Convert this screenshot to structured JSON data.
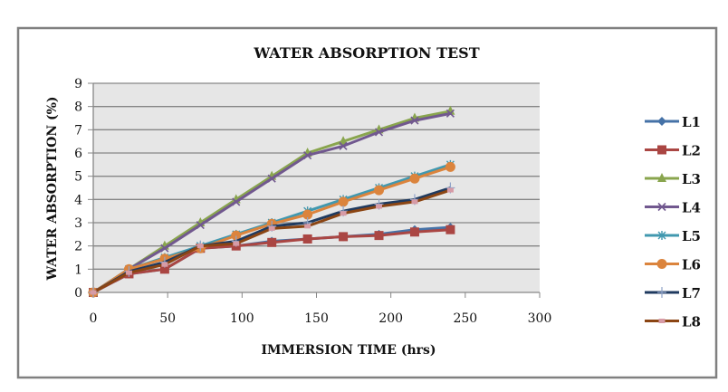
{
  "chart_data": {
    "type": "line",
    "title": "WATER ABSORPTION TEST",
    "xlabel": "IMMERSION TIME (hrs)",
    "ylabel": "WATER ABSORPTION (%)",
    "xlim": [
      0,
      300
    ],
    "ylim": [
      0,
      9
    ],
    "xticks": [
      0,
      50,
      100,
      150,
      200,
      250,
      300
    ],
    "yticks": [
      0,
      1,
      2,
      3,
      4,
      5,
      6,
      7,
      8,
      9
    ],
    "grid": true,
    "legend_position": "right",
    "x": [
      0,
      24,
      48,
      72,
      96,
      120,
      144,
      168,
      192,
      216,
      240
    ],
    "series": [
      {
        "name": "L1",
        "color": "#4572A7",
        "marker": "diamond",
        "values": [
          0,
          0.8,
          1.0,
          1.9,
          2.0,
          2.2,
          2.3,
          2.4,
          2.5,
          2.7,
          2.8
        ]
      },
      {
        "name": "L2",
        "color": "#AA4643",
        "marker": "square",
        "values": [
          0,
          0.8,
          1.0,
          1.9,
          2.0,
          2.15,
          2.3,
          2.4,
          2.45,
          2.6,
          2.7
        ]
      },
      {
        "name": "L3",
        "color": "#89A54E",
        "marker": "triangle",
        "values": [
          0,
          1.0,
          2.0,
          3.0,
          4.0,
          5.0,
          6.0,
          6.5,
          7.0,
          7.5,
          7.8
        ]
      },
      {
        "name": "L4",
        "color": "#71588F",
        "marker": "x",
        "values": [
          0,
          1.0,
          1.9,
          2.9,
          3.9,
          4.9,
          5.9,
          6.3,
          6.9,
          7.4,
          7.7
        ]
      },
      {
        "name": "L5",
        "color": "#4198AF",
        "marker": "star",
        "values": [
          0,
          1.0,
          1.5,
          2.0,
          2.5,
          3.0,
          3.5,
          4.0,
          4.5,
          5.0,
          5.5
        ]
      },
      {
        "name": "L6",
        "color": "#DB843D",
        "marker": "circle",
        "values": [
          0,
          1.0,
          1.45,
          1.9,
          2.45,
          2.95,
          3.35,
          3.9,
          4.4,
          4.9,
          5.4
        ]
      },
      {
        "name": "L7",
        "color": "#1F3A5F",
        "marker": "plus",
        "values": [
          0,
          0.9,
          1.3,
          2.0,
          2.2,
          2.85,
          3.0,
          3.5,
          3.8,
          4.0,
          4.5
        ]
      },
      {
        "name": "L8",
        "color": "#8B4513",
        "marker": "dash",
        "values": [
          0,
          0.85,
          1.2,
          2.0,
          2.1,
          2.75,
          2.85,
          3.4,
          3.7,
          3.9,
          4.4
        ]
      }
    ]
  }
}
